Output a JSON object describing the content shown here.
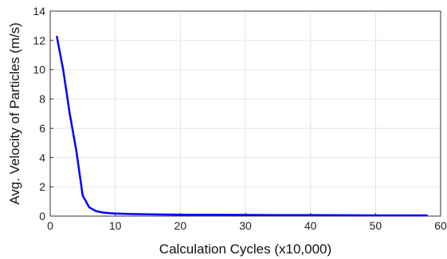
{
  "chart_data": {
    "type": "line",
    "xlabel": "Calculation Cycles (x10,000)",
    "ylabel": "Avg. Velocity of Particles (m/s)",
    "xlim": [
      0,
      60
    ],
    "ylim": [
      0,
      14
    ],
    "xticks": [
      0,
      10,
      20,
      30,
      40,
      50,
      60
    ],
    "yticks": [
      0,
      2,
      4,
      6,
      8,
      10,
      12,
      14
    ],
    "grid": true,
    "line_color": "#0000ff",
    "series": [
      {
        "x": [
          1,
          2,
          3,
          4,
          5,
          6,
          7,
          8,
          9,
          10,
          12,
          15,
          20,
          25,
          30,
          35,
          40,
          45,
          50,
          55,
          58
        ],
        "y": [
          12.3,
          10.0,
          7.0,
          4.5,
          1.4,
          0.6,
          0.35,
          0.25,
          0.2,
          0.18,
          0.15,
          0.12,
          0.1,
          0.09,
          0.08,
          0.07,
          0.07,
          0.06,
          0.05,
          0.05,
          0.05
        ]
      }
    ]
  }
}
